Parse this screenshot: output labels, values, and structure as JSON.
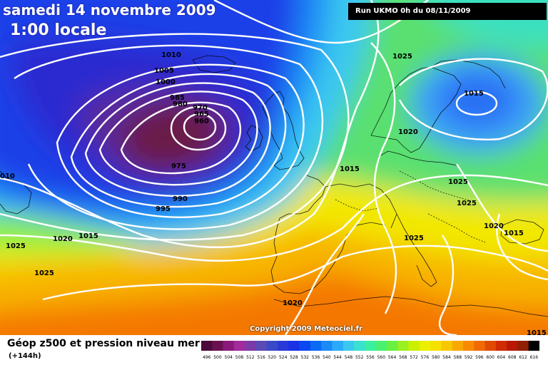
{
  "header": {
    "date": "samedi 14 novembre 2009",
    "time": "1:00 locale",
    "run": "Run UKMO 0h du 08/11/2009"
  },
  "copyright": "Copyright 2009 Meteociel.fr",
  "footer": {
    "title": "Géop z500 et pression niveau mer",
    "forecast_hour": "(+144h)"
  },
  "color_scale": {
    "labels": [
      "496",
      "500",
      "504",
      "508",
      "512",
      "516",
      "520",
      "524",
      "528",
      "532",
      "536",
      "540",
      "544",
      "548",
      "552",
      "556",
      "560",
      "564",
      "568",
      "572",
      "576",
      "580",
      "584",
      "588",
      "592",
      "596",
      "600",
      "604",
      "608",
      "612",
      "616"
    ],
    "colors": [
      "#4a0a3a",
      "#6a1050",
      "#8a1a7a",
      "#a22a9a",
      "#7a3aa8",
      "#5a4ab6",
      "#3a4ac6",
      "#2a3ad6",
      "#1a32e6",
      "#0a48f2",
      "#0a6af4",
      "#1a8af6",
      "#2aaaf8",
      "#3ac8f0",
      "#3ae0d0",
      "#3af0a0",
      "#4af070",
      "#6af040",
      "#9af020",
      "#caf000",
      "#eaf000",
      "#f6e000",
      "#f8c800",
      "#f8a800",
      "#f88a00",
      "#f06a00",
      "#e04a00",
      "#d02a00",
      "#b81800",
      "#902000",
      "#000000"
    ]
  },
  "isobars": {
    "labels": [
      "1010",
      "1005",
      "1000",
      "985",
      "980",
      "970",
      "965",
      "960",
      "975",
      "990",
      "995",
      "010",
      "1020",
      "1015",
      "1025",
      "1025",
      "1020",
      "1015",
      "1025",
      "1015",
      "1025",
      "1025",
      "1020",
      "1015",
      "1025",
      "1020",
      "1015"
    ]
  }
}
